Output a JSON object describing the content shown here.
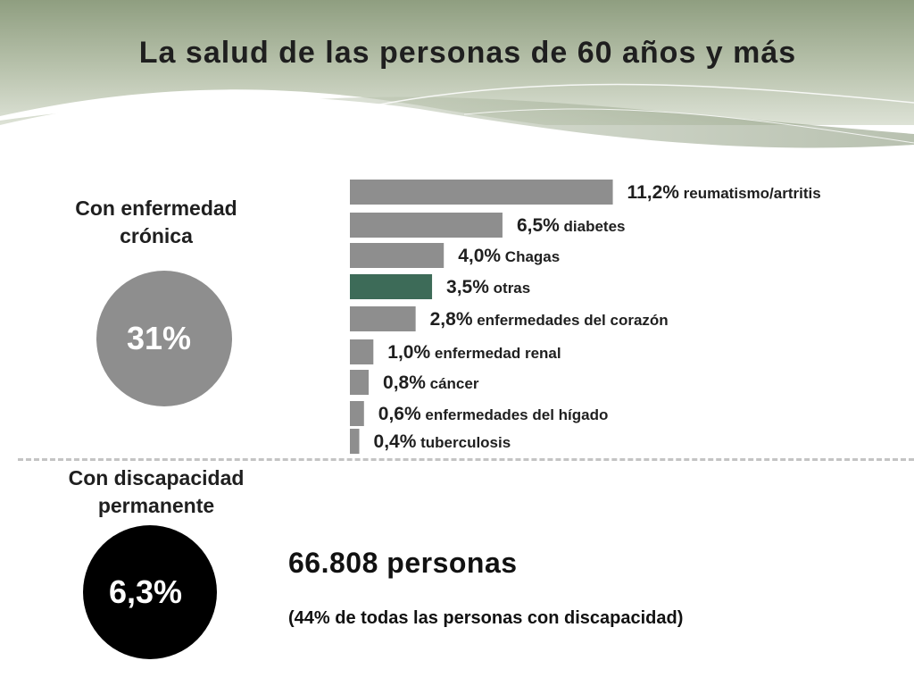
{
  "title": "La salud de las personas de 60 años y más",
  "chronic": {
    "label_line1": "Con enfermedad",
    "label_line2": "crónica",
    "percent": "31%"
  },
  "disability": {
    "label_line1": "Con discapacidad",
    "label_line2": "permanente",
    "percent": "6,3%",
    "people": "66.808 personas",
    "note": "(44% de todas las personas con discapacidad)"
  },
  "colors": {
    "bar_default": "#8e8e8e",
    "bar_highlight": "#3d6b58",
    "chronic_circle": "#8e8e8e",
    "disability_circle": "#000000"
  },
  "chart_data": {
    "type": "bar",
    "orientation": "horizontal",
    "categories": [
      "reumatismo/artritis",
      "diabetes",
      "Chagas",
      "otras",
      "enfermedades del corazón",
      "enfermedad renal",
      "cáncer",
      "enfermedades del hígado",
      "tuberculosis"
    ],
    "values": [
      11.2,
      6.5,
      4.0,
      3.5,
      2.8,
      1.0,
      0.8,
      0.6,
      0.4
    ],
    "value_labels": [
      "11,2%",
      "6,5%",
      "4,0%",
      "3,5%",
      "2,8%",
      "1,0%",
      "0,8%",
      "0,6%",
      "0,4%"
    ],
    "highlighted": [
      "otras"
    ],
    "unit": "%",
    "axes_visible": false,
    "grid": false
  }
}
